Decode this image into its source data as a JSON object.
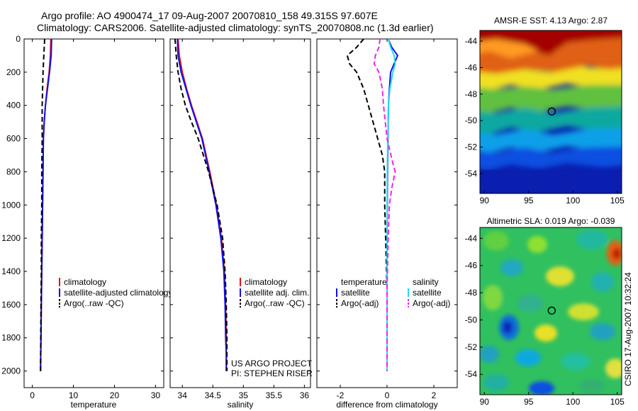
{
  "header": {
    "line1": "Argo profile: AO 4900474_17 09-Aug-2007 20070810_158 49.315S 97.607E",
    "line2": "Climatology: CARS2006. Satellite-adjusted climatology: synTS_20070808.nc (1.3d earlier)"
  },
  "credits": {
    "project": "US ARGO PROJECT",
    "pi": "PI: STEPHEN RISER",
    "stamp": "CSIRO 17-Aug-2007 10:32:24"
  },
  "colors": {
    "climatology": "#e01010",
    "satellite": "#1010ee",
    "argo": "#000000",
    "satellite_salinity": "#22ddee",
    "argo_salinity": "#ee22ee"
  },
  "chart_data": [
    {
      "type": "line",
      "xlabel": "temperature",
      "ylabel": "",
      "xlim": [
        -2,
        32
      ],
      "ylim": [
        2100,
        0
      ],
      "xticks": [
        0,
        10,
        20,
        30
      ],
      "yticks": [
        0,
        200,
        400,
        600,
        800,
        1000,
        1200,
        1400,
        1600,
        1800,
        2000
      ],
      "legend": [
        "climatology",
        "satellite-adjusted climatology",
        "Argo(..raw -QC)"
      ],
      "series": [
        {
          "name": "climatology",
          "color": "#e01010",
          "dash": false,
          "x": [
            4.5,
            4.4,
            4.1,
            3.6,
            3.2,
            2.9,
            2.7,
            2.6,
            2.5,
            2.4,
            2.3,
            2.2,
            2.1,
            2.05,
            2.0
          ],
          "y": [
            0,
            100,
            200,
            300,
            400,
            500,
            600,
            800,
            1000,
            1200,
            1400,
            1600,
            1800,
            1900,
            2000
          ]
        },
        {
          "name": "satellite-adjusted climatology",
          "color": "#1010ee",
          "dash": false,
          "x": [
            4.7,
            4.6,
            4.2,
            3.7,
            3.2,
            2.9,
            2.7,
            2.6,
            2.5,
            2.4,
            2.3,
            2.2,
            2.1,
            2.05,
            2.0
          ],
          "y": [
            0,
            100,
            200,
            300,
            400,
            500,
            600,
            800,
            1000,
            1200,
            1400,
            1600,
            1800,
            1900,
            2000
          ]
        },
        {
          "name": "Argo(..raw -QC)",
          "color": "#000000",
          "dash": true,
          "x": [
            3.0,
            2.8,
            2.6,
            2.5,
            2.4,
            2.4,
            2.4,
            2.3,
            2.3,
            2.2,
            2.2,
            2.1,
            2.05,
            2.0
          ],
          "y": [
            0,
            100,
            200,
            300,
            400,
            500,
            600,
            800,
            1000,
            1200,
            1400,
            1600,
            1800,
            2000
          ]
        }
      ]
    },
    {
      "type": "line",
      "xlabel": "salinity",
      "ylabel": "",
      "xlim": [
        33.8,
        36.1
      ],
      "ylim": [
        2100,
        0
      ],
      "xticks": [
        34,
        34.5,
        35,
        35.5,
        36
      ],
      "xticklabels": [
        "34",
        "34.5",
        "35",
        "35.5",
        "36"
      ],
      "legend": [
        "climatology",
        "satellite adj. clim.",
        "Argo(..raw -QC)"
      ],
      "series": [
        {
          "name": "climatology",
          "color": "#e01010",
          "dash": false,
          "x": [
            33.93,
            33.95,
            34.0,
            34.07,
            34.15,
            34.24,
            34.33,
            34.45,
            34.56,
            34.64,
            34.69,
            34.71,
            34.72,
            34.72,
            34.72
          ],
          "y": [
            0,
            100,
            200,
            300,
            400,
            500,
            600,
            800,
            1000,
            1200,
            1400,
            1600,
            1800,
            1900,
            2000
          ]
        },
        {
          "name": "satellite adj. clim.",
          "color": "#1010ee",
          "dash": false,
          "x": [
            33.92,
            33.93,
            33.98,
            34.06,
            34.14,
            34.23,
            34.32,
            34.44,
            34.55,
            34.63,
            34.68,
            34.7,
            34.71,
            34.72,
            34.72
          ],
          "y": [
            0,
            100,
            200,
            300,
            400,
            500,
            600,
            800,
            1000,
            1200,
            1400,
            1600,
            1800,
            1900,
            2000
          ]
        },
        {
          "name": "Argo(..raw -QC)",
          "color": "#000000",
          "dash": true,
          "x": [
            33.88,
            33.9,
            33.93,
            33.98,
            34.05,
            34.15,
            34.26,
            34.43,
            34.57,
            34.66,
            34.7,
            34.72,
            34.73,
            34.73
          ],
          "y": [
            0,
            100,
            200,
            300,
            400,
            500,
            600,
            800,
            1000,
            1200,
            1400,
            1600,
            1800,
            2000
          ]
        }
      ]
    },
    {
      "type": "line",
      "xlabel": "difference from climatology",
      "ylabel": "",
      "xlim": [
        -3,
        3
      ],
      "ylim": [
        2100,
        0
      ],
      "xticks": [
        -2,
        0,
        2
      ],
      "legend_left": [
        "temperature",
        "satellite",
        "Argo(-adj)"
      ],
      "legend_right": [
        "salinity",
        "satellite",
        "Argo(-adj)"
      ],
      "series": [
        {
          "name": "satellite",
          "group": "temperature",
          "color": "#1010ee",
          "dash": false,
          "x": [
            0.05,
            0.2,
            0.45,
            0.3,
            0.15,
            0.1,
            0.06,
            0.04,
            0.02,
            0.01,
            0.0,
            0.0,
            0.0,
            0.0
          ],
          "y": [
            0,
            50,
            100,
            150,
            200,
            300,
            400,
            600,
            800,
            1000,
            1200,
            1500,
            1800,
            2000
          ]
        },
        {
          "name": "Argo(-adj)",
          "group": "temperature",
          "color": "#000000",
          "dash": true,
          "x": [
            -1.0,
            -1.3,
            -1.7,
            -1.6,
            -1.3,
            -1.0,
            -0.8,
            -0.6,
            -0.4,
            -0.2,
            -0.1,
            -0.1,
            0.0,
            0.0
          ],
          "y": [
            0,
            50,
            100,
            150,
            200,
            300,
            400,
            500,
            600,
            700,
            800,
            1000,
            1500,
            2000
          ]
        },
        {
          "name": "satellite",
          "group": "salinity",
          "color": "#22ddee",
          "dash": false,
          "x": [
            0.05,
            0.15,
            0.3,
            0.35,
            0.25,
            0.12,
            0.06,
            0.03,
            0.01,
            0.0,
            0.0,
            0.0,
            0.0
          ],
          "y": [
            0,
            50,
            100,
            150,
            200,
            300,
            400,
            600,
            800,
            1000,
            1200,
            1600,
            2000
          ]
        },
        {
          "name": "Argo(-adj)",
          "group": "salinity",
          "color": "#ee22ee",
          "dash": true,
          "x": [
            -0.3,
            -0.35,
            -0.5,
            -0.55,
            -0.35,
            -0.2,
            -0.15,
            0.0,
            0.25,
            0.35,
            0.2,
            0.1,
            0.05,
            0.0,
            0.0
          ],
          "y": [
            0,
            50,
            100,
            150,
            200,
            300,
            400,
            600,
            750,
            800,
            900,
            1000,
            1200,
            1500,
            2000
          ]
        }
      ]
    },
    {
      "type": "heatmap",
      "title": "AMSR-E SST: 4.13 Argo: 2.87",
      "xlim": [
        89.5,
        105.5
      ],
      "ylim": [
        -55.5,
        -43.2
      ],
      "xticks": [
        90,
        95,
        100,
        105
      ],
      "yticks": [
        -44,
        -46,
        -48,
        -50,
        -52,
        -54
      ],
      "marker": {
        "lon": 97.607,
        "lat": -49.315
      }
    },
    {
      "type": "heatmap",
      "title": "Altimetric SLA: 0.019 Argo: -0.039",
      "xlim": [
        89.5,
        105.5
      ],
      "ylim": [
        -55.5,
        -43.2
      ],
      "xticks": [
        90,
        95,
        100,
        105
      ],
      "yticks": [
        -44,
        -46,
        -48,
        -50,
        -52,
        -54
      ],
      "marker": {
        "lon": 97.607,
        "lat": -49.315
      }
    }
  ]
}
